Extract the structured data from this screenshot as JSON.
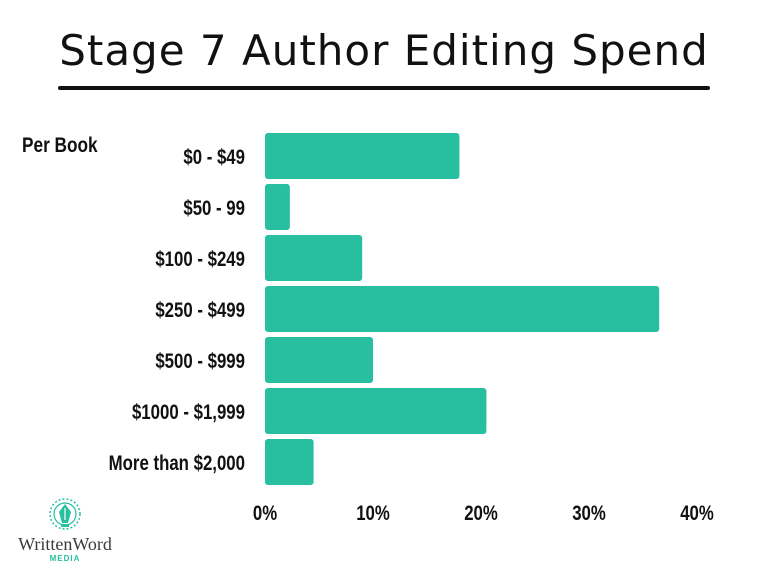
{
  "header": {
    "title": "Stage 7 Author Editing Spend"
  },
  "chart_note": "Per Book",
  "chart_data": {
    "type": "bar",
    "orientation": "horizontal",
    "title": "Stage 7 Author Editing Spend",
    "categories": [
      "$0 - $49",
      "$50 - 99",
      "$100 - $249",
      "$250 - $499",
      "$500 - $999",
      "$1000 - $1,999",
      "More than $2,000"
    ],
    "values": [
      18,
      2.3,
      9,
      36.5,
      10,
      20.5,
      4.5
    ],
    "value_unit": "%",
    "xlim": [
      0,
      40
    ],
    "xticks": [
      "0%",
      "10%",
      "20%",
      "30%",
      "40%"
    ],
    "xtick_values": [
      0,
      10,
      20,
      30,
      40
    ],
    "grid": false,
    "bar_color": "#27bfa0"
  },
  "logo": {
    "name": "WrittenWord",
    "sub": "MEDIA",
    "icon": "pen-nib-icon",
    "accent": "#27bfa0"
  }
}
